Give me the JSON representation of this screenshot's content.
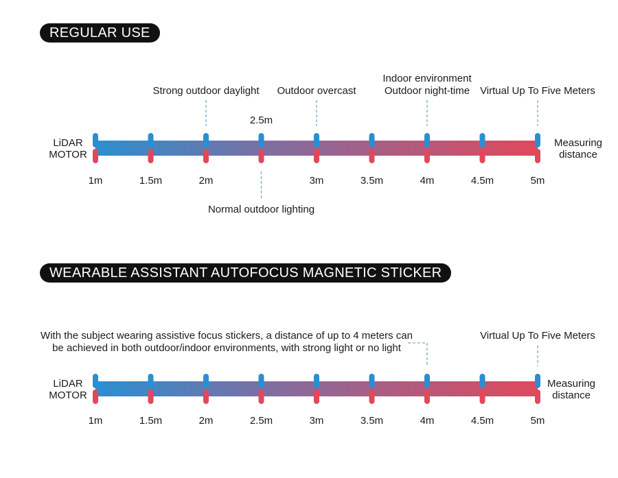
{
  "section1": {
    "title": "REGULAR USE",
    "left_label": [
      "LiDAR",
      "MOTOR"
    ],
    "right_label": [
      "Measuring",
      "distance"
    ],
    "ticks": [
      "1m",
      "1.5m",
      "2m",
      "3m",
      "3.5m",
      "4m",
      "4.5m",
      "5m"
    ],
    "tick_values": [
      1,
      1.5,
      2,
      2.5,
      3,
      3.5,
      4,
      4.5,
      5
    ],
    "mid_mark": "2.5m",
    "annotations_above": [
      {
        "value": 2,
        "text": [
          "Strong outdoor daylight"
        ]
      },
      {
        "value": 3,
        "text": [
          "Outdoor overcast"
        ]
      },
      {
        "value": 4,
        "text": [
          "Indoor environment",
          "Outdoor night-time"
        ]
      },
      {
        "value": 5,
        "text": [
          "Virtual Up To Five Meters"
        ]
      }
    ],
    "annotations_below": [
      {
        "value": 2.5,
        "text": [
          "Normal outdoor lighting"
        ]
      }
    ]
  },
  "section2": {
    "title": "WEARABLE ASSISTANT AUTOFOCUS MAGNETIC STICKER",
    "left_label": [
      "LiDAR",
      "MOTOR"
    ],
    "right_label": [
      "Measuring",
      "distance"
    ],
    "ticks": [
      "1m",
      "1.5m",
      "2m",
      "2.5m",
      "3m",
      "3.5m",
      "4m",
      "4.5m",
      "5m"
    ],
    "tick_values": [
      1,
      1.5,
      2,
      2.5,
      3,
      3.5,
      4,
      4.5,
      5
    ],
    "note": {
      "value": 4,
      "text": [
        "With the subject wearing assistive focus stickers, a distance of up to 4 meters can",
        "be achieved in both outdoor/indoor environments, with strong light or no light"
      ]
    },
    "annotations_above": [
      {
        "value": 5,
        "text": [
          "Virtual Up To Five Meters"
        ]
      }
    ]
  },
  "colors": {
    "blue": "#2a8fd0",
    "red": "#e0485c",
    "dash": "#7aa6c8",
    "pill_bg": "#111111"
  }
}
